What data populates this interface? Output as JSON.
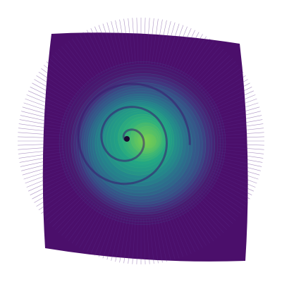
{
  "figure": {
    "background_color": "#ffffff",
    "palette": [
      "#440154",
      "#482475",
      "#414487",
      "#355f8d",
      "#2a788e",
      "#21918c",
      "#22a884",
      "#44bf70",
      "#7ad151",
      "#bddf26"
    ],
    "outer_color": "#4b0f6b",
    "line_color": "#5a2a8a"
  }
}
